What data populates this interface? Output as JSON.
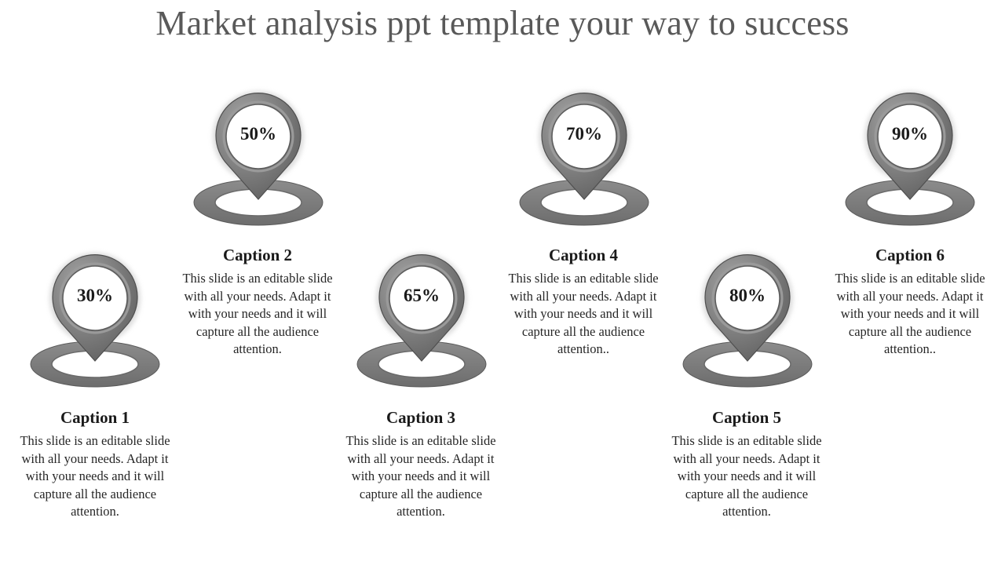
{
  "title": "Market analysis ppt template your way to success",
  "items": [
    {
      "percent": "30%",
      "value": 30,
      "caption": "Caption 1",
      "text": "This slide is an editable slide with all your needs. Adapt it with your needs and it will capture all the audience attention."
    },
    {
      "percent": "50%",
      "value": 50,
      "caption": "Caption 2",
      "text": "This slide is an editable slide with all your needs. Adapt it with your needs and it will capture all the audience attention."
    },
    {
      "percent": "65%",
      "value": 65,
      "caption": "Caption 3",
      "text": "This slide is an editable slide with all your needs. Adapt it with your needs and it will capture all the audience attention."
    },
    {
      "percent": "70%",
      "value": 70,
      "caption": "Caption 4",
      "text": "This slide is an editable slide with all your needs. Adapt it with your needs and it will capture all the audience attention.."
    },
    {
      "percent": "80%",
      "value": 80,
      "caption": "Caption 5",
      "text": "This slide is an editable slide with all your needs. Adapt it with your needs and it will capture all the audience attention."
    },
    {
      "percent": "90%",
      "value": 90,
      "caption": "Caption 6",
      "text": "This slide is an editable slide with all your needs. Adapt it with your needs and it will capture all the audience attention.."
    }
  ],
  "colors": {
    "marker_dark": "#5f5f5f",
    "marker_light": "#a8a8a8",
    "ring": "#8c8c8c",
    "title": "#595959"
  },
  "icons": {
    "marker": "map-pin-icon",
    "base": "ring-base-icon"
  }
}
